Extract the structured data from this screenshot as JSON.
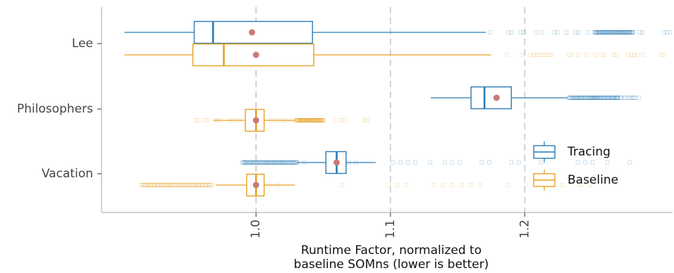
{
  "chart_data": {
    "type": "boxplot",
    "orientation": "horizontal",
    "xlabel_lines": [
      "Runtime Factor, normalized to",
      "baseline SOMns (lower is better)"
    ],
    "xlim": [
      0.885,
      1.31
    ],
    "x_ticks": [
      {
        "value": 1.0,
        "label": "1.0"
      },
      {
        "value": 1.1,
        "label": "1.1"
      },
      {
        "value": 1.2,
        "label": "1.2"
      }
    ],
    "grid": "dashed vertical at x ticks",
    "legend_position": "right",
    "colors": {
      "Tracing": "#2b7bb3",
      "Baseline": "#e6a024",
      "mean": "#c97a78",
      "grid": "#c8c8c8",
      "axis": "#b8b8b8"
    },
    "series": [
      {
        "name": "Tracing",
        "color": "#2b7bb3"
      },
      {
        "name": "Baseline",
        "color": "#e6a024"
      }
    ],
    "categories": [
      {
        "label": "Lee",
        "boxes": {
          "Tracing": {
            "whisker_low": 0.902,
            "q1": 0.954,
            "median": 0.968,
            "q3": 1.042,
            "whisker_high": 1.171,
            "mean": 0.997,
            "outliers": {
              "from": 1.172,
              "to": 1.308,
              "dense_from": 1.252,
              "dense_to": 1.28
            }
          },
          "Baseline": {
            "whisker_low": 0.902,
            "q1": 0.953,
            "median": 0.976,
            "q3": 1.043,
            "whisker_high": 1.175,
            "mean": 1.0,
            "outliers": {
              "from": 1.178,
              "to": 1.31,
              "dense_from": null,
              "dense_to": null
            }
          }
        }
      },
      {
        "label": "Philosophers",
        "boxes": {
          "Tracing": {
            "whisker_low": 1.13,
            "q1": 1.16,
            "median": 1.17,
            "q3": 1.19,
            "whisker_high": 1.232,
            "mean": 1.179,
            "outliers": {
              "from": 1.233,
              "to": 1.285,
              "dense_from": 1.233,
              "dense_to": 1.27
            }
          },
          "Baseline": {
            "whisker_low": 0.968,
            "q1": 0.992,
            "median": 1.0,
            "q3": 1.006,
            "whisker_high": 1.029,
            "mean": 1.0,
            "outliers": {
              "from": 0.955,
              "to": 1.085,
              "dense_from": 1.03,
              "dense_to": 1.05
            }
          }
        }
      },
      {
        "label": "Vacation",
        "boxes": {
          "Tracing": {
            "whisker_low": 1.03,
            "q1": 1.052,
            "median": 1.06,
            "q3": 1.067,
            "whisker_high": 1.089,
            "mean": 1.06,
            "outliers": {
              "from": 0.97,
              "to": 1.3,
              "dense_from": 0.99,
              "dense_to": 1.03
            }
          },
          "Baseline": {
            "whisker_low": 0.97,
            "q1": 0.993,
            "median": 1.0,
            "q3": 1.006,
            "whisker_high": 1.029,
            "mean": 1.0,
            "outliers": {
              "from": 0.9,
              "to": 1.31,
              "dense_from": 0.915,
              "dense_to": 0.968
            }
          }
        }
      }
    ]
  }
}
